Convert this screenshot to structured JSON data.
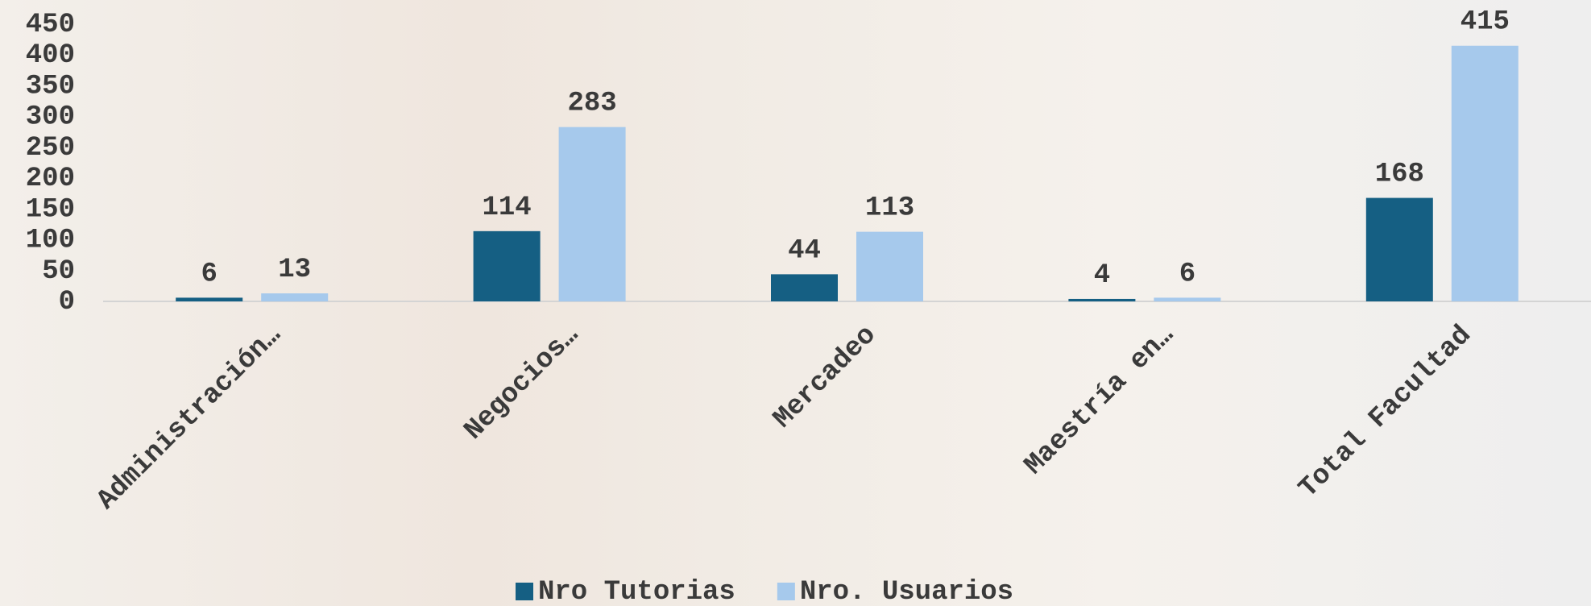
{
  "chart_data": {
    "type": "bar",
    "categories": [
      "Administración…",
      "Negocios…",
      "Mercadeo",
      "Maestría en…",
      "Total Facultad"
    ],
    "series": [
      {
        "name": "Nro Tutorias",
        "color": "#155f83",
        "values": [
          6,
          114,
          44,
          4,
          168
        ]
      },
      {
        "name": "Nro. Usuarios",
        "color": "#a6c9ec",
        "values": [
          13,
          283,
          113,
          6,
          415
        ]
      }
    ],
    "ylim": [
      0,
      450
    ],
    "yticks": [
      0,
      50,
      100,
      150,
      200,
      250,
      300,
      350,
      400,
      450
    ],
    "grid": false,
    "legend": "bottom"
  }
}
